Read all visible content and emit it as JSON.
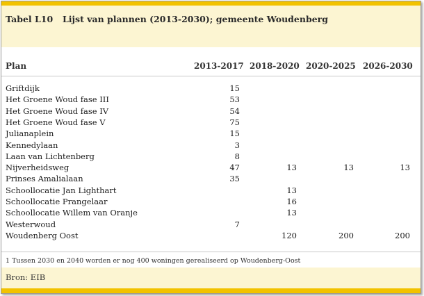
{
  "table": {
    "number": "Tabel L10",
    "title": "Lijst van plannen (2013-2030); gemeente Woudenberg",
    "columns": [
      "Plan",
      "2013-2017",
      "2018-2020",
      "2020-2025",
      "2026-2030"
    ],
    "rows": [
      {
        "plan": "Griftdijk",
        "v": [
          "15",
          "",
          "",
          ""
        ]
      },
      {
        "plan": "Het Groene Woud fase III",
        "v": [
          "53",
          "",
          "",
          ""
        ]
      },
      {
        "plan": "Het Groene Woud fase IV",
        "v": [
          "54",
          "",
          "",
          ""
        ]
      },
      {
        "plan": "Het Groene Woud fase V",
        "v": [
          "75",
          "",
          "",
          ""
        ]
      },
      {
        "plan": "Julianaplein",
        "v": [
          "15",
          "",
          "",
          ""
        ]
      },
      {
        "plan": "Kennedylaan",
        "v": [
          "3",
          "",
          "",
          ""
        ]
      },
      {
        "plan": "Laan van Lichtenberg",
        "v": [
          "8",
          "",
          "",
          ""
        ]
      },
      {
        "plan": "Nijverheidsweg",
        "v": [
          "47",
          "13",
          "13",
          "13"
        ]
      },
      {
        "plan": "Prinses Amalialaan",
        "v": [
          "35",
          "",
          "",
          ""
        ]
      },
      {
        "plan": "Schoollocatie Jan Lighthart",
        "v": [
          "",
          "13",
          "",
          ""
        ]
      },
      {
        "plan": "Schoollocatie Prangelaar",
        "v": [
          "",
          "16",
          "",
          ""
        ]
      },
      {
        "plan": "Schoollocatie Willem van Oranje",
        "v": [
          "",
          "13",
          "",
          ""
        ]
      },
      {
        "plan": "Westerwoud",
        "v": [
          "7",
          "",
          "",
          ""
        ]
      },
      {
        "plan": "Woudenberg Oost",
        "v": [
          "",
          "120",
          "200",
          "200"
        ]
      }
    ],
    "footnote": "1 Tussen 2030 en 2040 worden er nog 400 woningen gerealiseerd op Woudenberg-Oost",
    "source": "Bron: EIB"
  },
  "colors": {
    "accent_bar": "#f2c200",
    "header_fill": "#fcf5d2"
  }
}
